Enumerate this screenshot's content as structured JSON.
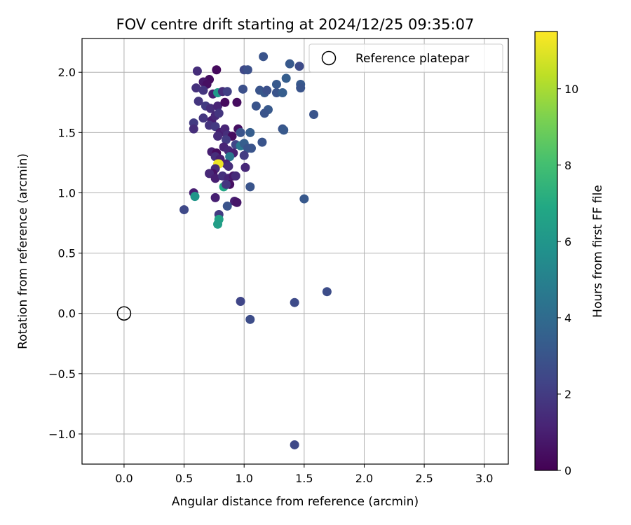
{
  "chart_data": {
    "type": "scatter",
    "title": "FOV centre drift starting at 2024/12/25 09:35:07",
    "xlabel": "Angular distance from reference (arcmin)",
    "ylabel": "Rotation from reference (arcmin)",
    "xlim": [
      -0.35,
      3.2
    ],
    "ylim": [
      -1.25,
      2.28
    ],
    "xticks": [
      0.0,
      0.5,
      1.0,
      1.5,
      2.0,
      2.5,
      3.0
    ],
    "xtick_labels": [
      "0.0",
      "0.5",
      "1.0",
      "1.5",
      "2.0",
      "2.5",
      "3.0"
    ],
    "yticks": [
      -1.0,
      -0.5,
      0.0,
      0.5,
      1.0,
      1.5,
      2.0
    ],
    "ytick_labels": [
      "−1.0",
      "−0.5",
      "0.0",
      "0.5",
      "1.0",
      "1.5",
      "2.0"
    ],
    "grid": true,
    "legend": {
      "placement": "upper right",
      "entries": [
        "Reference platepar"
      ]
    },
    "reference_point": {
      "x": 0.0,
      "y": 0.0
    },
    "colorbar": {
      "label": "Hours from first FF file",
      "range": [
        0,
        11.5
      ],
      "ticks": [
        0,
        2,
        4,
        6,
        8,
        10
      ],
      "tick_labels": [
        "0",
        "2",
        "4",
        "6",
        "8",
        "10"
      ],
      "colormap": "viridis"
    },
    "points": [
      {
        "x": 0.61,
        "y": 2.01,
        "c": 1.5
      },
      {
        "x": 0.77,
        "y": 2.02,
        "c": 0.3
      },
      {
        "x": 1.16,
        "y": 2.13,
        "c": 3.0
      },
      {
        "x": 1.0,
        "y": 2.02,
        "c": 2.5
      },
      {
        "x": 1.03,
        "y": 2.02,
        "c": 2.8
      },
      {
        "x": 1.38,
        "y": 2.07,
        "c": 3.2
      },
      {
        "x": 1.46,
        "y": 2.05,
        "c": 2.6
      },
      {
        "x": 1.35,
        "y": 1.95,
        "c": 3.4
      },
      {
        "x": 1.47,
        "y": 1.9,
        "c": 3.2
      },
      {
        "x": 1.47,
        "y": 1.87,
        "c": 3.0
      },
      {
        "x": 1.27,
        "y": 1.9,
        "c": 3.2
      },
      {
        "x": 0.71,
        "y": 1.94,
        "c": 0.4
      },
      {
        "x": 0.66,
        "y": 1.92,
        "c": 0.8
      },
      {
        "x": 0.69,
        "y": 1.9,
        "c": 0.5
      },
      {
        "x": 0.6,
        "y": 1.87,
        "c": 1.6
      },
      {
        "x": 0.66,
        "y": 1.85,
        "c": 1.8
      },
      {
        "x": 0.74,
        "y": 1.82,
        "c": 1.0
      },
      {
        "x": 0.78,
        "y": 1.83,
        "c": 6.2
      },
      {
        "x": 0.82,
        "y": 1.84,
        "c": 1.5
      },
      {
        "x": 0.86,
        "y": 1.84,
        "c": 2.2
      },
      {
        "x": 0.99,
        "y": 1.86,
        "c": 2.8
      },
      {
        "x": 1.13,
        "y": 1.85,
        "c": 3.0
      },
      {
        "x": 1.17,
        "y": 1.83,
        "c": 3.2
      },
      {
        "x": 1.19,
        "y": 1.85,
        "c": 2.8
      },
      {
        "x": 1.27,
        "y": 1.83,
        "c": 3.0
      },
      {
        "x": 1.32,
        "y": 1.83,
        "c": 3.4
      },
      {
        "x": 0.62,
        "y": 1.76,
        "c": 1.8
      },
      {
        "x": 0.68,
        "y": 1.72,
        "c": 2.0
      },
      {
        "x": 0.72,
        "y": 1.7,
        "c": 1.5
      },
      {
        "x": 0.78,
        "y": 1.72,
        "c": 1.2
      },
      {
        "x": 0.84,
        "y": 1.75,
        "c": 0.3
      },
      {
        "x": 0.94,
        "y": 1.75,
        "c": 0.4
      },
      {
        "x": 1.1,
        "y": 1.72,
        "c": 3.0
      },
      {
        "x": 1.2,
        "y": 1.69,
        "c": 3.2
      },
      {
        "x": 1.17,
        "y": 1.66,
        "c": 3.0
      },
      {
        "x": 1.58,
        "y": 1.65,
        "c": 3.0
      },
      {
        "x": 0.66,
        "y": 1.62,
        "c": 1.8
      },
      {
        "x": 0.73,
        "y": 1.6,
        "c": 1.0
      },
      {
        "x": 0.76,
        "y": 1.64,
        "c": 1.3
      },
      {
        "x": 0.79,
        "y": 1.66,
        "c": 1.8
      },
      {
        "x": 0.71,
        "y": 1.56,
        "c": 1.7
      },
      {
        "x": 0.58,
        "y": 1.58,
        "c": 2.0
      },
      {
        "x": 0.58,
        "y": 1.53,
        "c": 1.5
      },
      {
        "x": 0.76,
        "y": 1.55,
        "c": 1.9
      },
      {
        "x": 0.8,
        "y": 1.5,
        "c": 1.0
      },
      {
        "x": 0.84,
        "y": 1.53,
        "c": 1.2
      },
      {
        "x": 0.86,
        "y": 1.48,
        "c": 1.5
      },
      {
        "x": 0.9,
        "y": 1.47,
        "c": 0.4
      },
      {
        "x": 0.95,
        "y": 1.53,
        "c": 0.5
      },
      {
        "x": 0.97,
        "y": 1.5,
        "c": 3.0
      },
      {
        "x": 1.05,
        "y": 1.5,
        "c": 3.4
      },
      {
        "x": 1.32,
        "y": 1.53,
        "c": 3.0
      },
      {
        "x": 1.33,
        "y": 1.52,
        "c": 3.2
      },
      {
        "x": 0.78,
        "y": 1.47,
        "c": 1.4
      },
      {
        "x": 0.85,
        "y": 1.44,
        "c": 2.0
      },
      {
        "x": 0.93,
        "y": 1.4,
        "c": 2.4
      },
      {
        "x": 0.97,
        "y": 1.39,
        "c": 4.6
      },
      {
        "x": 1.0,
        "y": 1.41,
        "c": 3.4
      },
      {
        "x": 1.03,
        "y": 1.37,
        "c": 3.0
      },
      {
        "x": 1.06,
        "y": 1.37,
        "c": 3.0
      },
      {
        "x": 1.15,
        "y": 1.42,
        "c": 3.0
      },
      {
        "x": 0.73,
        "y": 1.34,
        "c": 1.0
      },
      {
        "x": 0.77,
        "y": 1.33,
        "c": 0.4
      },
      {
        "x": 0.83,
        "y": 1.38,
        "c": 1.2
      },
      {
        "x": 0.87,
        "y": 1.35,
        "c": 1.3
      },
      {
        "x": 0.91,
        "y": 1.33,
        "c": 1.0
      },
      {
        "x": 1.0,
        "y": 1.31,
        "c": 2.0
      },
      {
        "x": 0.88,
        "y": 1.3,
        "c": 4.6
      },
      {
        "x": 0.76,
        "y": 1.3,
        "c": 1.5
      },
      {
        "x": 0.8,
        "y": 1.28,
        "c": 1.0
      },
      {
        "x": 0.85,
        "y": 1.24,
        "c": 1.2
      },
      {
        "x": 0.87,
        "y": 1.22,
        "c": 1.5
      },
      {
        "x": 0.78,
        "y": 1.24,
        "c": 11.3
      },
      {
        "x": 0.79,
        "y": 1.24,
        "c": 11.2
      },
      {
        "x": 0.76,
        "y": 1.2,
        "c": 1.4
      },
      {
        "x": 0.74,
        "y": 1.16,
        "c": 0.6
      },
      {
        "x": 0.71,
        "y": 1.16,
        "c": 1.3
      },
      {
        "x": 0.76,
        "y": 1.12,
        "c": 1.0
      },
      {
        "x": 0.82,
        "y": 1.14,
        "c": 1.6
      },
      {
        "x": 0.87,
        "y": 1.12,
        "c": 1.2
      },
      {
        "x": 0.91,
        "y": 1.14,
        "c": 0.8
      },
      {
        "x": 0.93,
        "y": 1.14,
        "c": 1.4
      },
      {
        "x": 0.88,
        "y": 1.07,
        "c": 0.5
      },
      {
        "x": 1.01,
        "y": 1.21,
        "c": 1.3
      },
      {
        "x": 0.83,
        "y": 1.05,
        "c": 6.8
      },
      {
        "x": 0.85,
        "y": 1.07,
        "c": 1.8
      },
      {
        "x": 1.05,
        "y": 1.05,
        "c": 3.0
      },
      {
        "x": 0.58,
        "y": 1.0,
        "c": 1.0
      },
      {
        "x": 0.59,
        "y": 0.97,
        "c": 6.0
      },
      {
        "x": 0.76,
        "y": 0.96,
        "c": 1.0
      },
      {
        "x": 0.92,
        "y": 0.93,
        "c": 1.0
      },
      {
        "x": 0.94,
        "y": 0.92,
        "c": 0.7
      },
      {
        "x": 0.86,
        "y": 0.89,
        "c": 3.0
      },
      {
        "x": 1.5,
        "y": 0.95,
        "c": 3.2
      },
      {
        "x": 0.5,
        "y": 0.86,
        "c": 2.5
      },
      {
        "x": 0.79,
        "y": 0.82,
        "c": 2.0
      },
      {
        "x": 0.79,
        "y": 0.78,
        "c": 6.6
      },
      {
        "x": 0.78,
        "y": 0.74,
        "c": 6.4
      },
      {
        "x": 1.69,
        "y": 0.18,
        "c": 2.7
      },
      {
        "x": 0.97,
        "y": 0.1,
        "c": 2.4
      },
      {
        "x": 1.42,
        "y": 0.09,
        "c": 2.6
      },
      {
        "x": 1.05,
        "y": -0.05,
        "c": 2.7
      },
      {
        "x": 1.42,
        "y": -1.09,
        "c": 2.5
      }
    ]
  }
}
